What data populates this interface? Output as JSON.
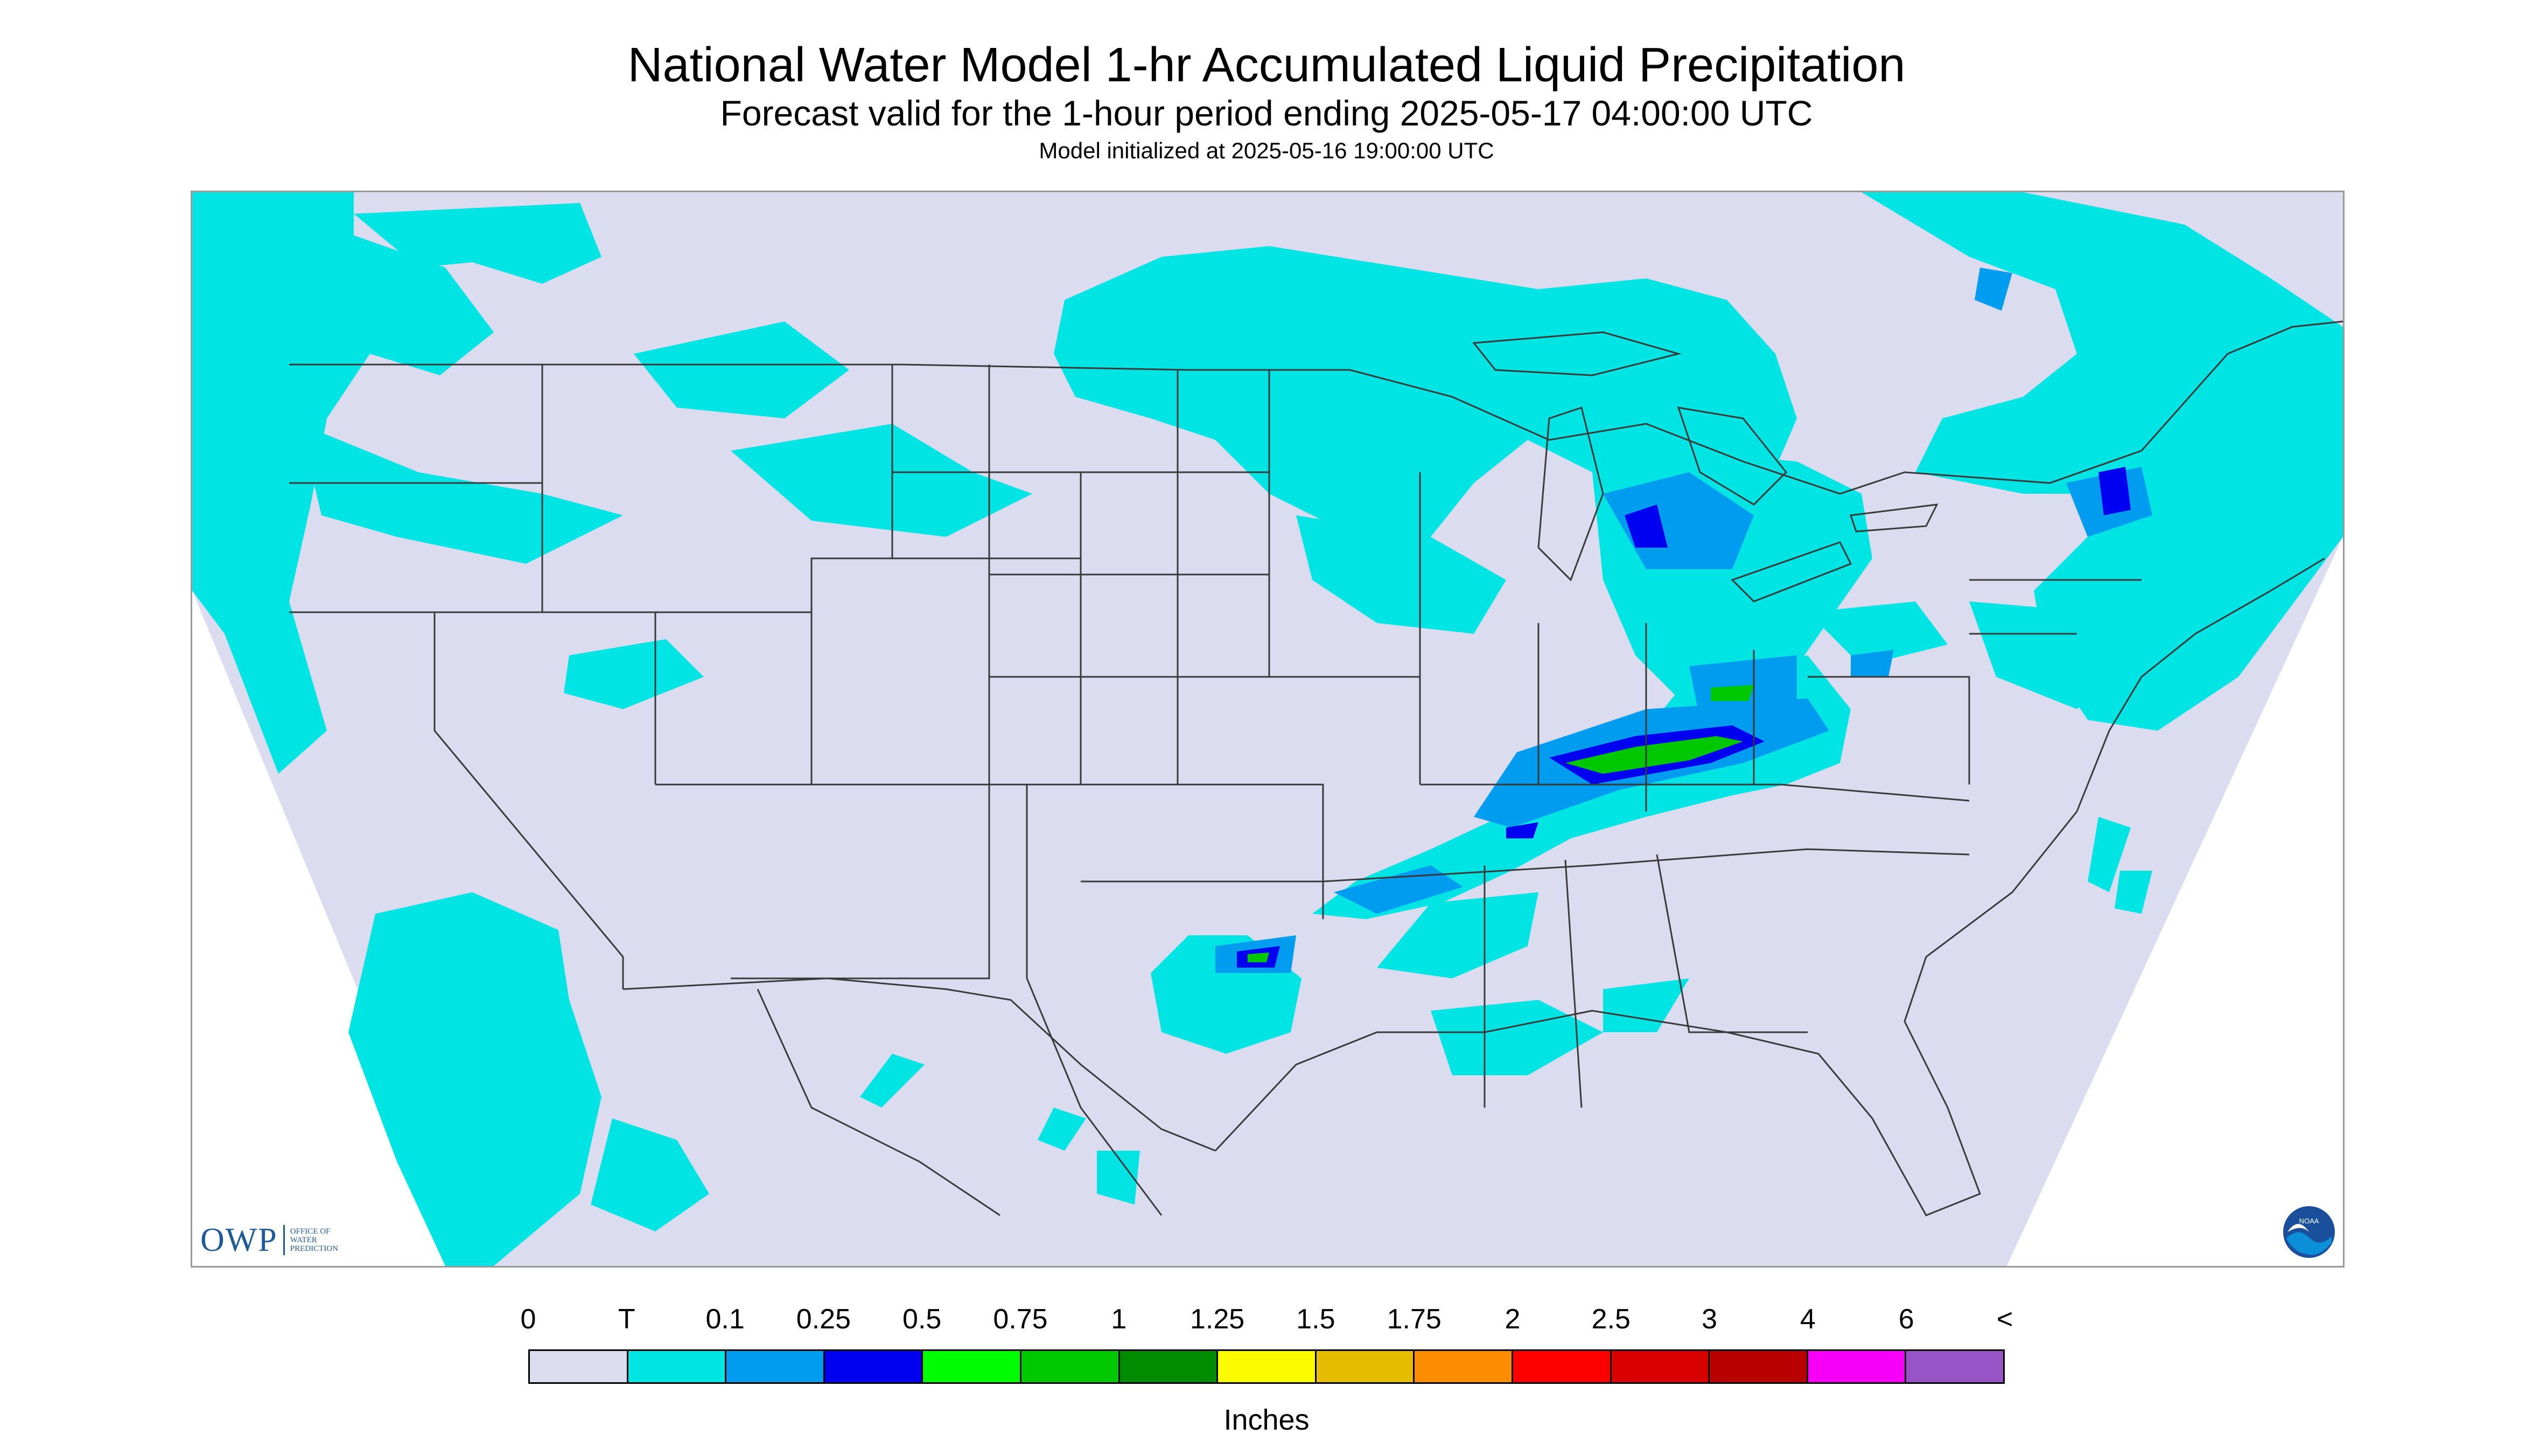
{
  "header": {
    "title": "National Water Model 1-hr Accumulated Liquid Precipitation",
    "subtitle": "Forecast valid for the 1-hour period ending 2025-05-17 04:00:00 UTC",
    "init_line": "Model initialized at 2025-05-16 19:00:00 UTC"
  },
  "logos": {
    "owp_text": "OWP",
    "owp_sub": [
      "OFFICE OF",
      "WATER",
      "PREDICTION"
    ],
    "noaa_text": "NOAA"
  },
  "legend": {
    "labels": [
      "0",
      "T",
      "0.1",
      "0.25",
      "0.5",
      "0.75",
      "1",
      "1.25",
      "1.5",
      "1.75",
      "2",
      "2.5",
      "3",
      "4",
      "6",
      "<"
    ],
    "colors": [
      "#dcdcf0",
      "#00e4e4",
      "#009cf0",
      "#0000f0",
      "#00fc00",
      "#00c800",
      "#008c00",
      "#fcfc00",
      "#e4bc00",
      "#fc8c00",
      "#fc0000",
      "#d80000",
      "#b80000",
      "#f800f8",
      "#9854c6"
    ],
    "units": "Inches"
  },
  "map": {
    "background_color": "#dcdcf0",
    "outside_color": "#ffffff",
    "border_color": "#3a3a3a"
  }
}
